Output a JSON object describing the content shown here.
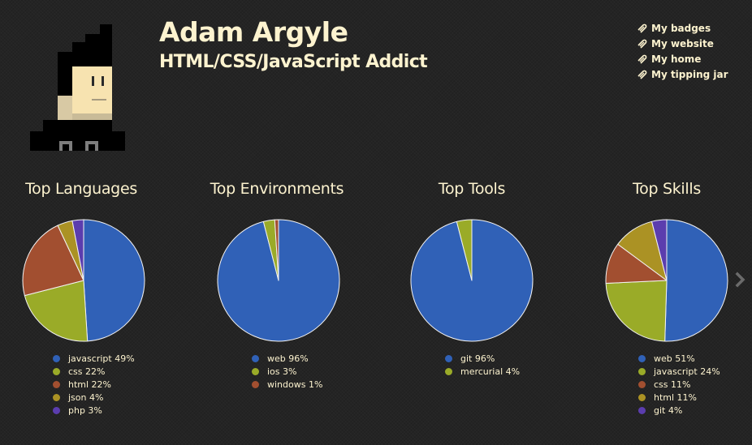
{
  "profile": {
    "name": "Adam Argyle",
    "tagline": "HTML/CSS/JavaScript Addict",
    "avatar_icon": "pixel-avatar-icon"
  },
  "links": [
    {
      "label": "My badges",
      "icon": "paperclip-icon"
    },
    {
      "label": "My website",
      "icon": "paperclip-icon"
    },
    {
      "label": "My home",
      "icon": "paperclip-icon"
    },
    {
      "label": "My tipping jar",
      "icon": "paperclip-icon"
    }
  ],
  "colors": {
    "background": "#242424",
    "text": "#fdf3cf",
    "blue": "#3061b7",
    "green": "#9aab28",
    "rust": "#a24f30",
    "gold": "#ab9224",
    "purple": "#5b3dae"
  },
  "next_arrow_icon": "chevron-right-icon",
  "chart_data": [
    {
      "type": "pie",
      "title": "Top Languages",
      "labels": [
        "javascript 49%",
        "css 22%",
        "html 22%",
        "json 4%",
        "php 3%"
      ],
      "values": [
        49,
        22,
        22,
        4,
        3
      ],
      "colors": [
        "#3061b7",
        "#9aab28",
        "#a24f30",
        "#ab9224",
        "#5b3dae"
      ]
    },
    {
      "type": "pie",
      "title": "Top Environments",
      "labels": [
        "web 96%",
        "ios 3%",
        "windows 1%"
      ],
      "values": [
        96,
        3,
        1
      ],
      "colors": [
        "#3061b7",
        "#9aab28",
        "#a24f30"
      ]
    },
    {
      "type": "pie",
      "title": "Top Tools",
      "labels": [
        "git 96%",
        "mercurial 4%"
      ],
      "values": [
        96,
        4
      ],
      "colors": [
        "#3061b7",
        "#9aab28"
      ]
    },
    {
      "type": "pie",
      "title": "Top Skills",
      "labels": [
        "web 51%",
        "javascript 24%",
        "css 11%",
        "html 11%",
        "git 4%"
      ],
      "values": [
        51,
        24,
        11,
        11,
        4
      ],
      "colors": [
        "#3061b7",
        "#9aab28",
        "#a24f30",
        "#ab9224",
        "#5b3dae"
      ]
    }
  ]
}
